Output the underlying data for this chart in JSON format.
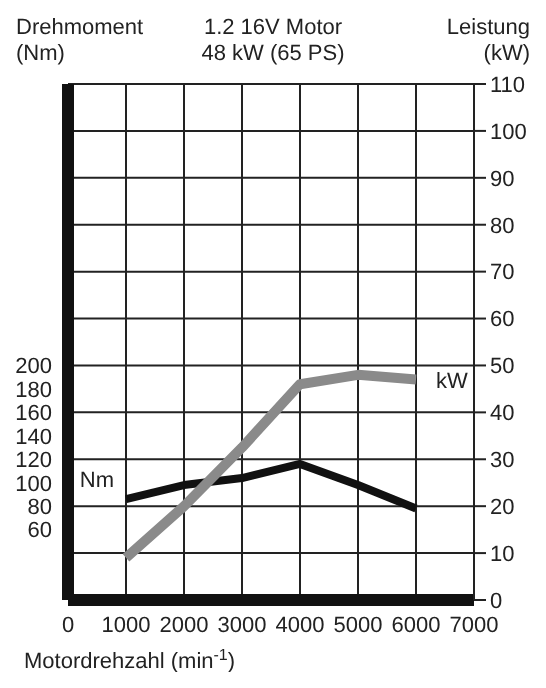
{
  "chart_data": {
    "type": "line",
    "title": "1.2 16V Motor",
    "subtitle": "48 kW (65 PS)",
    "ylabel": "Drehmoment\n(Nm)",
    "y2label": "Leistung\n(kW)",
    "xlabel": "Motordrehzahl (min$^{-1}$)",
    "x": [
      1000,
      2000,
      3000,
      4000,
      5000,
      6000
    ],
    "xlim": [
      0,
      7000
    ],
    "xticks": [
      0,
      1000,
      2000,
      3000,
      4000,
      5000,
      6000,
      7000
    ],
    "ylim": [
      0,
      440
    ],
    "yticks": [
      60,
      80,
      100,
      120,
      140,
      160,
      180,
      200
    ],
    "y2lim": [
      0,
      110
    ],
    "y2ticks": [
      0,
      10,
      20,
      30,
      40,
      50,
      60,
      70,
      80,
      90,
      100,
      110
    ],
    "series": [
      {
        "name": "Nm",
        "color": "#111111",
        "values": [
          86,
          98,
          104,
          116,
          98,
          78
        ]
      },
      {
        "name": "kW",
        "color": "#8a8a8a",
        "axis": "y2",
        "values": [
          9,
          20,
          32.5,
          46,
          48,
          47
        ]
      }
    ],
    "grid": true,
    "marker": "none",
    "line_style": "solid"
  }
}
